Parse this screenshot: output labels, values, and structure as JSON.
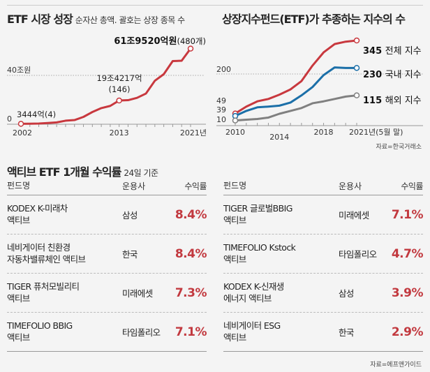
{
  "left_chart_title": "ETF 시장 성장",
  "left_chart_subtitle": "순자산 총액. 괄호는 상장 종목 수",
  "right_chart_title": "상장지수펀드(ETF)가 추종하는 지수의 수",
  "right_chart_source": "자료=한국거래소",
  "table_title": "액티브 ETF 1개월 수익률",
  "table_subtitle": "24일 기준",
  "table_source": "자료=에프앤가이드",
  "table_headers": {
    "fund": "펀드명",
    "manager": "운용사",
    "return": "수익률"
  },
  "colors": {
    "red": "#c8383e",
    "blue": "#1b6fa8",
    "gray": "#808080"
  },
  "chart_data": [
    {
      "type": "line",
      "title": "ETF 시장 성장",
      "subtitle": "순자산 총액. 괄호는 상장 종목 수",
      "x": [
        2002,
        2003,
        2004,
        2005,
        2006,
        2007,
        2008,
        2009,
        2010,
        2011,
        2012,
        2013,
        2014,
        2015,
        2016,
        2017,
        2018,
        2019,
        2020,
        2021
      ],
      "series": [
        {
          "name": "순자산 총액(조원)",
          "values": [
            0.34,
            0.4,
            0.6,
            1.0,
            1.5,
            2.9,
            3.4,
            6.0,
            10.0,
            13.2,
            15.0,
            19.42,
            19.7,
            21.6,
            25.1,
            35.6,
            41.0,
            51.7,
            52.0,
            61.95
          ]
        }
      ],
      "xticks": [
        "2002",
        "2013",
        "2021년"
      ],
      "yticks": [
        "0",
        "40조원"
      ],
      "ylim": [
        0,
        70
      ],
      "annotations": [
        {
          "x": 2002,
          "label": "3444억(4)"
        },
        {
          "x": 2013,
          "label": "19조4217억",
          "label2": "(146)"
        },
        {
          "x": 2021,
          "label": "61조9520억원",
          "label2": "(480개)"
        }
      ]
    },
    {
      "type": "line",
      "title": "상장지수펀드(ETF)가 추종하는 지수의 수",
      "x": [
        2010,
        2011,
        2012,
        2013,
        2014,
        2015,
        2016,
        2017,
        2018,
        2019,
        2020,
        2021
      ],
      "series": [
        {
          "name": "전체 지수",
          "end_value": "345",
          "values": [
            39,
            68,
            90,
            100,
            118,
            140,
            175,
            240,
            295,
            330,
            340,
            345
          ]
        },
        {
          "name": "국내 지수",
          "end_value": "230",
          "values": [
            29,
            50,
            65,
            68,
            72,
            85,
            115,
            150,
            200,
            232,
            230,
            230
          ]
        },
        {
          "name": "해외 지수",
          "end_value": "115",
          "values": [
            10,
            13,
            16,
            22,
            38,
            50,
            62,
            82,
            90,
            100,
            110,
            115
          ]
        }
      ],
      "xticks": [
        "2010",
        "2014",
        "2018",
        "2021년(5월 말)"
      ],
      "yticks": [
        "10",
        "39",
        "49",
        "200"
      ],
      "ylim": [
        0,
        400
      ]
    }
  ],
  "left_table": [
    {
      "fund1": "KODEX K-미래차",
      "fund2": "액티브",
      "manager": "삼성",
      "return": "8.4%"
    },
    {
      "fund1": "네비게이터 친환경",
      "fund2": "자동차밸류체인 액티브",
      "manager": "한국",
      "return": "8.4%"
    },
    {
      "fund1": "TIGER 퓨처모빌리티",
      "fund2": "액티브",
      "manager": "미래에셋",
      "return": "7.3%"
    },
    {
      "fund1": "TIMEFOLIO BBIG",
      "fund2": "액티브",
      "manager": "타임폴리오",
      "return": "7.1%"
    }
  ],
  "right_table": [
    {
      "fund1": "TIGER 글로벌BBIG",
      "fund2": "액티브",
      "manager": "미래에셋",
      "return": "7.1%"
    },
    {
      "fund1": "TIMEFOLIO Kstock",
      "fund2": "액티브",
      "manager": "타임폴리오",
      "return": "4.7%"
    },
    {
      "fund1": "KODEX K-신재생",
      "fund2": "에너지 액티브",
      "manager": "삼성",
      "return": "3.9%"
    },
    {
      "fund1": "네비게이터 ESG",
      "fund2": "액티브",
      "manager": "한국",
      "return": "2.9%"
    }
  ]
}
